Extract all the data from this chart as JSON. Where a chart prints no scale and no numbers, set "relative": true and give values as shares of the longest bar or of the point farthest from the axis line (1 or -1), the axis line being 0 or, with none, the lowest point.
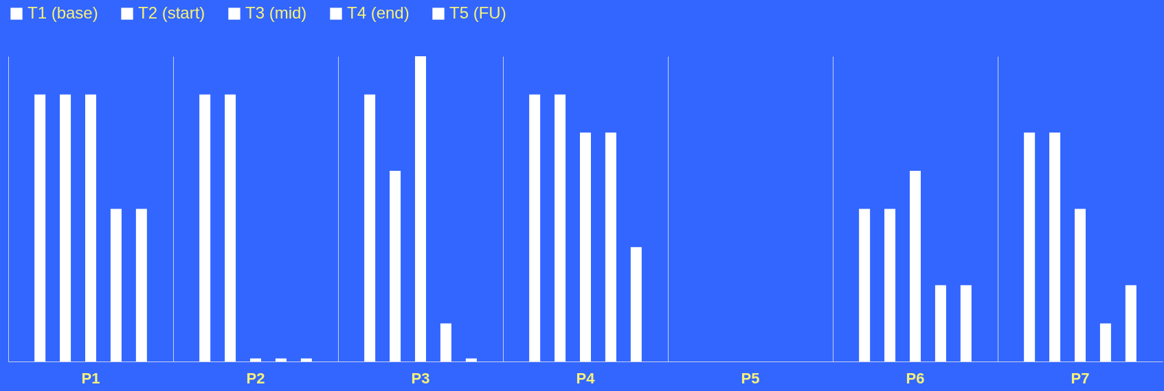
{
  "chart_data": {
    "type": "bar",
    "relative": true,
    "categories": [
      "P1",
      "P2",
      "P3",
      "P4",
      "P5",
      "P6",
      "P7"
    ],
    "series": [
      {
        "name": "T1 (base)",
        "color": "#ffffff",
        "values": [
          0.875,
          0.875,
          0.875,
          0.875,
          0,
          0.5,
          0.75
        ]
      },
      {
        "name": "T2 (start)",
        "color": "#ffffff",
        "values": [
          0.875,
          0.875,
          0.625,
          0.875,
          0,
          0.5,
          0.75
        ]
      },
      {
        "name": "T3 (mid)",
        "color": "#ffffff",
        "values": [
          0.875,
          0.01,
          1,
          0.75,
          0,
          0.625,
          0.5
        ]
      },
      {
        "name": "T4 (end)",
        "color": "#ffffff",
        "values": [
          0.5,
          0.01,
          0.125,
          0.75,
          0,
          0.25,
          0.125
        ]
      },
      {
        "name": "T5 (FU)",
        "color": "#ffffff",
        "values": [
          0.5,
          0.01,
          0.01,
          0.375,
          0,
          0.25,
          0.25
        ]
      }
    ],
    "grid": "x",
    "legend": "top"
  }
}
